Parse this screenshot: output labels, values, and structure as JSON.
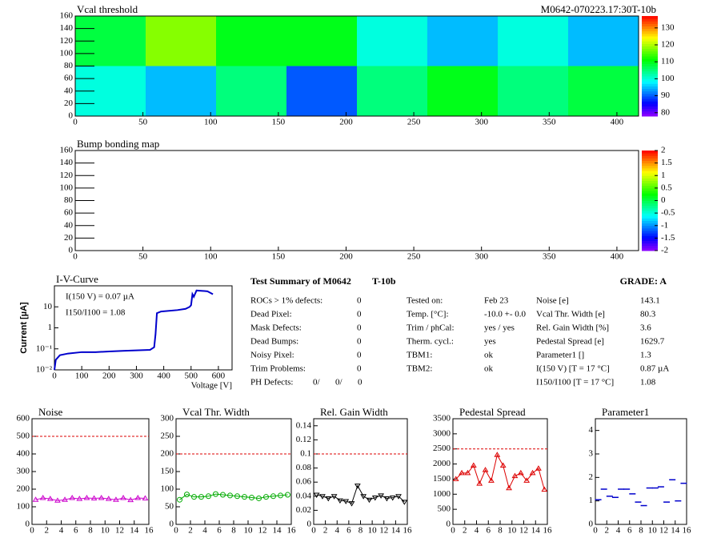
{
  "chart_data": [
    {
      "type": "heatmap",
      "title": "Vcal threshold",
      "subtitle": "M0642-070223.17:30T-10b",
      "xlim": [
        0,
        416
      ],
      "xticks": [
        0,
        50,
        100,
        150,
        200,
        250,
        300,
        350,
        400
      ],
      "ylim": [
        0,
        160
      ],
      "yticks": [
        0,
        20,
        40,
        60,
        80,
        100,
        120,
        140,
        160
      ],
      "zlim": [
        78,
        137
      ],
      "zticks": [
        80,
        90,
        100,
        110,
        120,
        130
      ],
      "values": [
        [
          100,
          95,
          105,
          90,
          105,
          110,
          105,
          108
        ],
        [
          108,
          118,
          110,
          110,
          100,
          95,
          100,
          95
        ]
      ]
    },
    {
      "type": "heatmap",
      "title": "Bump bonding map",
      "xlim": [
        0,
        416
      ],
      "xticks": [
        0,
        50,
        100,
        150,
        200,
        250,
        300,
        350,
        400
      ],
      "ylim": [
        0,
        160
      ],
      "yticks": [
        0,
        20,
        40,
        60,
        80,
        100,
        120,
        140,
        160
      ],
      "zlim": [
        -2,
        2
      ],
      "zticks": [
        -2,
        -1.5,
        -1,
        -0.5,
        0,
        0.5,
        1,
        1.5,
        2
      ]
    },
    {
      "type": "line",
      "title": "I-V-Curve",
      "xlabel": "Voltage [V]",
      "ylabel": "Current [µA]",
      "log_y": true,
      "xlim": [
        0,
        650
      ],
      "xticks": [
        0,
        100,
        200,
        300,
        400,
        500,
        600
      ],
      "ylim": [
        0.01,
        100
      ],
      "yticks": [
        {
          "value": 0.01,
          "label": "10⁻²"
        },
        {
          "value": 0.1,
          "label": "10⁻¹"
        },
        1,
        10
      ],
      "annotations": [
        "I(150 V) = 0.07 µA",
        "I150/I100 =  1.08"
      ],
      "series": [
        {
          "color": "#0000cc",
          "x": [
            0,
            5,
            20,
            50,
            100,
            150,
            200,
            250,
            300,
            350,
            365,
            370,
            375,
            390,
            450,
            480,
            495,
            500,
            505,
            510,
            520,
            560,
            580
          ],
          "values": [
            0.01,
            0.03,
            0.05,
            0.06,
            0.07,
            0.07,
            0.075,
            0.08,
            0.085,
            0.09,
            0.12,
            0.5,
            5,
            6,
            7,
            8,
            10,
            12,
            40,
            30,
            60,
            55,
            40
          ]
        }
      ]
    },
    {
      "type": "line",
      "title": "Noise",
      "marker": "triangle",
      "xlim": [
        0,
        16
      ],
      "xticks": [
        0,
        2,
        4,
        6,
        8,
        10,
        12,
        14,
        16
      ],
      "ylim": [
        0,
        600
      ],
      "yticks": [
        0,
        100,
        200,
        300,
        400,
        500,
        600
      ],
      "limit": 500,
      "series": [
        {
          "color": "#cc00cc",
          "x": [
            0.5,
            1.5,
            2.5,
            3.5,
            4.5,
            5.5,
            6.5,
            7.5,
            8.5,
            9.5,
            10.5,
            11.5,
            12.5,
            13.5,
            14.5,
            15.5
          ],
          "values": [
            140,
            150,
            145,
            135,
            140,
            150,
            145,
            150,
            148,
            150,
            145,
            140,
            150,
            138,
            150,
            148
          ]
        }
      ]
    },
    {
      "type": "line",
      "title": "Vcal Thr. Width",
      "marker": "circle",
      "xlim": [
        0,
        16
      ],
      "xticks": [
        0,
        2,
        4,
        6,
        8,
        10,
        12,
        14,
        16
      ],
      "ylim": [
        0,
        300
      ],
      "yticks": [
        0,
        50,
        100,
        150,
        200,
        250,
        300
      ],
      "limit": 200,
      "series": [
        {
          "color": "#00aa00",
          "x": [
            0.5,
            1.5,
            2.5,
            3.5,
            4.5,
            5.5,
            6.5,
            7.5,
            8.5,
            9.5,
            10.5,
            11.5,
            12.5,
            13.5,
            14.5,
            15.5
          ],
          "values": [
            70,
            85,
            78,
            78,
            80,
            86,
            84,
            82,
            80,
            78,
            76,
            74,
            78,
            80,
            82,
            84
          ]
        }
      ]
    },
    {
      "type": "line",
      "title": "Rel. Gain Width",
      "marker": "triangle-down",
      "xlim": [
        0,
        16
      ],
      "xticks": [
        0,
        2,
        4,
        6,
        8,
        10,
        12,
        14,
        16
      ],
      "ylim": [
        0,
        0.15
      ],
      "yticks": [
        0,
        0.02,
        0.04,
        0.06,
        0.08,
        0.1,
        0.12,
        0.14
      ],
      "limit": 0.1,
      "series": [
        {
          "color": "#000000",
          "x": [
            0.5,
            1.5,
            2.5,
            3.5,
            4.5,
            5.5,
            6.5,
            7.5,
            8.5,
            9.5,
            10.5,
            11.5,
            12.5,
            13.5,
            14.5,
            15.5
          ],
          "values": [
            0.042,
            0.04,
            0.037,
            0.04,
            0.034,
            0.033,
            0.03,
            0.055,
            0.04,
            0.035,
            0.038,
            0.041,
            0.037,
            0.038,
            0.04,
            0.032
          ]
        }
      ]
    },
    {
      "type": "line",
      "title": "Pedestal Spread",
      "marker": "triangle",
      "xlim": [
        0,
        16
      ],
      "xticks": [
        0,
        2,
        4,
        6,
        8,
        10,
        12,
        14,
        16
      ],
      "ylim": [
        0,
        3500
      ],
      "yticks": [
        0,
        500,
        1000,
        1500,
        2000,
        2500,
        3000,
        3500
      ],
      "limit": 2500,
      "series": [
        {
          "color": "#dd0000",
          "x": [
            0.5,
            1.5,
            2.5,
            3.5,
            4.5,
            5.5,
            6.5,
            7.5,
            8.5,
            9.5,
            10.5,
            11.5,
            12.5,
            13.5,
            14.5,
            15.5
          ],
          "values": [
            1500,
            1700,
            1700,
            1950,
            1350,
            1800,
            1450,
            2300,
            1950,
            1200,
            1600,
            1700,
            1450,
            1700,
            1850,
            1150
          ]
        }
      ]
    },
    {
      "type": "scatter",
      "title": "Parameter1",
      "xlim": [
        0,
        16
      ],
      "xticks": [
        0,
        2,
        4,
        6,
        8,
        10,
        12,
        14,
        16
      ],
      "ylim": [
        0,
        4.5
      ],
      "yticks": [
        0,
        1,
        2,
        3,
        4
      ],
      "series": [
        {
          "color": "#0000cc",
          "x": [
            0.5,
            1.5,
            2.5,
            3.5,
            4.5,
            5.5,
            6.5,
            7.5,
            8.5,
            9.5,
            10.5,
            11.5,
            12.5,
            13.5,
            14.5,
            15.5
          ],
          "values": [
            1.05,
            1.5,
            1.2,
            1.15,
            1.5,
            1.5,
            1.3,
            0.95,
            0.8,
            1.55,
            1.55,
            1.6,
            0.95,
            1.9,
            1.0,
            1.75
          ]
        }
      ]
    }
  ],
  "summary": {
    "title": "Test Summary of M0642",
    "tag": "T-10b",
    "grade": "GRADE:  A",
    "defects": [
      [
        "ROCs > 1% defects:",
        "0"
      ],
      [
        "Dead Pixel:",
        "0"
      ],
      [
        "Mask Defects:",
        "0"
      ],
      [
        "Dead Bumps:",
        "0"
      ],
      [
        "Noisy Pixel:",
        "0"
      ],
      [
        "Trim Problems:",
        "0"
      ]
    ],
    "ph_defects": {
      "label": "PH Defects:",
      "values": [
        "0/",
        "0/",
        "0"
      ]
    },
    "info": [
      [
        "Tested on:",
        "Feb 23"
      ],
      [
        "Temp. [°C]:",
        "-10.0 +- 0.0"
      ],
      [
        "Trim / phCal:",
        "yes / yes"
      ],
      [
        "Therm. cycl.:",
        "yes"
      ],
      [
        "TBM1:",
        "ok"
      ],
      [
        "TBM2:",
        "ok"
      ]
    ],
    "results": [
      [
        "Noise [e]",
        "143.1"
      ],
      [
        "Vcal Thr. Width [e]",
        "80.3"
      ],
      [
        "Rel. Gain Width [%]",
        "3.6"
      ],
      [
        "Pedestal Spread [e]",
        "1629.7"
      ],
      [
        "Parameter1 []",
        "1.3"
      ],
      [
        "I(150 V) [T = 17 °C]",
        "0.87 µA"
      ],
      [
        "I150/I100  [T = 17 °C]",
        "1.08"
      ]
    ]
  }
}
